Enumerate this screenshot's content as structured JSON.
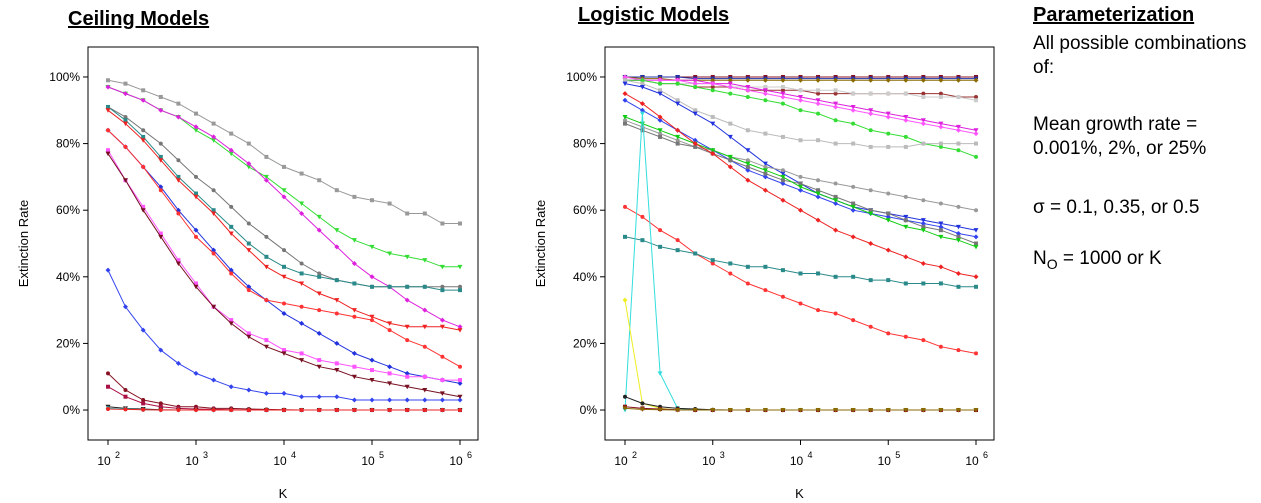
{
  "param": {
    "title": "Parameterization",
    "intro": "All possible combinations of:",
    "growth": "Mean growth rate = 0.001%, 2%, or 25%",
    "sigma": "σ = 0.1, 0.35, or 0.5",
    "n0_prefix": "N",
    "n0_sub": "O",
    "n0_suffix": " = 1000 or K"
  },
  "chart_data": [
    {
      "type": "line",
      "title": "Ceiling Models",
      "xlabel": "K",
      "ylabel": "Extinction Rate",
      "xscale": "log",
      "xlim": [
        100,
        1000000
      ],
      "ylim": [
        -9,
        109
      ],
      "xticks": [
        {
          "label": "10",
          "sup": "2"
        },
        {
          "label": "10",
          "sup": "3"
        },
        {
          "label": "10",
          "sup": "4"
        },
        {
          "label": "10",
          "sup": "5"
        },
        {
          "label": "10",
          "sup": "6"
        }
      ],
      "yticks": [
        "0%",
        "20%",
        "40%",
        "60%",
        "80%",
        "100%"
      ],
      "x": [
        100,
        158,
        251,
        398,
        631,
        1000,
        1585,
        2512,
        3981,
        6310,
        10000,
        15849,
        25119,
        39811,
        63096,
        100000,
        158489,
        251189,
        398107,
        630957,
        1000000
      ],
      "series": [
        {
          "color": "#999999",
          "values": [
            99,
            98,
            96,
            94,
            92,
            89,
            86,
            83,
            80,
            76,
            73,
            71,
            69,
            66,
            64,
            63,
            62,
            59,
            59,
            56,
            56
          ]
        },
        {
          "color": "#33dd33",
          "values": [
            97,
            95,
            93,
            90,
            88,
            84,
            81,
            77,
            73,
            70,
            66,
            62,
            58,
            54,
            51,
            49,
            47,
            46,
            45,
            43,
            43
          ]
        },
        {
          "color": "#dd22dd",
          "values": [
            97,
            95,
            93,
            90,
            88,
            85,
            82,
            78,
            74,
            69,
            64,
            59,
            54,
            49,
            44,
            40,
            37,
            33,
            30,
            27,
            25
          ]
        },
        {
          "color": "#777777",
          "values": [
            91,
            88,
            84,
            80,
            75,
            70,
            66,
            61,
            56,
            52,
            48,
            44,
            41,
            39,
            38,
            37,
            37,
            37,
            37,
            37,
            37
          ]
        },
        {
          "color": "#2a8a8a",
          "values": [
            91,
            87,
            82,
            76,
            70,
            65,
            60,
            55,
            50,
            46,
            43,
            41,
            40,
            39,
            38,
            37,
            37,
            37,
            37,
            36,
            36
          ]
        },
        {
          "color": "#ee2222",
          "values": [
            90,
            86,
            81,
            75,
            69,
            64,
            59,
            53,
            48,
            43,
            40,
            38,
            35,
            33,
            30,
            28,
            26,
            25,
            25,
            25,
            24
          ]
        },
        {
          "color": "#2233dd",
          "values": [
            84,
            79,
            73,
            67,
            60,
            54,
            48,
            42,
            37,
            33,
            29,
            26,
            23,
            20,
            17,
            15,
            13,
            11,
            10,
            9,
            8
          ]
        },
        {
          "color": "#ff3333",
          "values": [
            84,
            79,
            73,
            66,
            59,
            52,
            47,
            41,
            36,
            33,
            32,
            31,
            30,
            29,
            28,
            27,
            24,
            21,
            19,
            16,
            13
          ]
        },
        {
          "color": "#ff55ff",
          "values": [
            78,
            69,
            61,
            53,
            45,
            38,
            31,
            27,
            23,
            21,
            18,
            17,
            15,
            14,
            13,
            12,
            11,
            10,
            10,
            9,
            9
          ]
        },
        {
          "color": "#771122",
          "values": [
            77,
            69,
            60,
            52,
            44,
            37,
            31,
            26,
            22,
            19,
            17,
            15,
            13,
            12,
            10,
            9,
            8,
            7,
            6,
            5,
            4
          ]
        },
        {
          "color": "#3344ee",
          "values": [
            42,
            31,
            24,
            18,
            14,
            11,
            9,
            7,
            6,
            5,
            5,
            4,
            4,
            4,
            3,
            3,
            3,
            3,
            3,
            3,
            3
          ]
        },
        {
          "color": "#881122",
          "values": [
            11,
            6,
            3,
            2,
            1,
            1,
            0.5,
            0.5,
            0.3,
            0.2,
            0.1,
            0,
            0,
            0,
            0,
            0,
            0,
            0,
            0,
            0,
            0
          ]
        },
        {
          "color": "#aa1144",
          "values": [
            7,
            4,
            2,
            1,
            0.5,
            0.3,
            0.2,
            0.1,
            0,
            0,
            0,
            0,
            0,
            0,
            0,
            0,
            0,
            0,
            0,
            0,
            0
          ]
        },
        {
          "color": "#222222",
          "values": [
            1,
            0.5,
            0.3,
            0.1,
            0,
            0,
            0,
            0,
            0,
            0,
            0,
            0,
            0,
            0,
            0,
            0,
            0,
            0,
            0,
            0,
            0
          ]
        },
        {
          "color": "#22dddd",
          "values": [
            0.5,
            0.3,
            0.1,
            0,
            0,
            0,
            0,
            0,
            0,
            0,
            0,
            0,
            0,
            0,
            0,
            0,
            0,
            0,
            0,
            0,
            0
          ]
        },
        {
          "color": "#ee2222",
          "values": [
            0.3,
            0.2,
            0.1,
            0,
            0,
            0,
            0,
            0,
            0,
            0,
            0,
            0,
            0,
            0,
            0,
            0,
            0,
            0,
            0,
            0,
            0
          ]
        }
      ]
    },
    {
      "type": "line",
      "title": "Logistic Models",
      "xlabel": "K",
      "ylabel": "Extinction Rate",
      "xscale": "log",
      "xlim": [
        100,
        1000000
      ],
      "ylim": [
        -9,
        109
      ],
      "xticks": [
        {
          "label": "10",
          "sup": "2"
        },
        {
          "label": "10",
          "sup": "3"
        },
        {
          "label": "10",
          "sup": "4"
        },
        {
          "label": "10",
          "sup": "5"
        },
        {
          "label": "10",
          "sup": "6"
        }
      ],
      "yticks": [
        "0%",
        "20%",
        "40%",
        "60%",
        "80%",
        "100%"
      ],
      "x": [
        100,
        158,
        251,
        398,
        631,
        1000,
        1585,
        2512,
        3981,
        6310,
        10000,
        15849,
        25119,
        39811,
        63096,
        100000,
        158489,
        251189,
        398107,
        630957,
        1000000
      ],
      "series": [
        {
          "color": "#881122",
          "values": [
            100,
            100,
            100,
            100,
            100,
            100,
            100,
            100,
            100,
            100,
            100,
            100,
            100,
            100,
            100,
            100,
            100,
            100,
            100,
            100,
            100
          ]
        },
        {
          "color": "#2233aa",
          "values": [
            100,
            100,
            100,
            100,
            99.5,
            99.5,
            99.5,
            99.5,
            99.5,
            99.5,
            99.5,
            99.5,
            99.5,
            99.5,
            99.5,
            99.5,
            99.5,
            99.5,
            99.5,
            99.5,
            99.5
          ]
        },
        {
          "color": "#8a6a00",
          "values": [
            100,
            99.5,
            99.5,
            99,
            99,
            99,
            99,
            99,
            99,
            99,
            99,
            99,
            99,
            99,
            99,
            99,
            99,
            99,
            99,
            99,
            99
          ]
        },
        {
          "color": "#993333",
          "values": [
            99,
            99,
            98,
            98,
            97,
            97,
            97,
            96,
            96,
            96,
            96,
            95,
            95,
            95,
            95,
            95,
            95,
            95,
            95,
            94,
            94
          ]
        },
        {
          "color": "#cccccc",
          "values": [
            99,
            99,
            98,
            98,
            98,
            98,
            97,
            97,
            97,
            97,
            96,
            96,
            96,
            95,
            95,
            95,
            95,
            94,
            94,
            94,
            93
          ]
        },
        {
          "color": "#dd22dd",
          "values": [
            99,
            99,
            99,
            99,
            99,
            98,
            98,
            97,
            96,
            95,
            94,
            93,
            92,
            91,
            90,
            89,
            88,
            87,
            86,
            85,
            84
          ]
        },
        {
          "color": "#ff55ff",
          "values": [
            100,
            99,
            99,
            99,
            98,
            98,
            97,
            96,
            95,
            94,
            93,
            92,
            91,
            90,
            89,
            88,
            87,
            86,
            85,
            84,
            83
          ]
        },
        {
          "color": "#33dd33",
          "values": [
            99,
            99,
            98,
            98,
            97,
            96,
            95,
            94,
            93,
            92,
            90,
            89,
            87,
            86,
            84,
            83,
            82,
            80,
            79,
            78,
            76
          ]
        },
        {
          "color": "#bbbbbb",
          "values": [
            99,
            98,
            96,
            93,
            90,
            88,
            86,
            84,
            83,
            82,
            81,
            81,
            80,
            80,
            79,
            79,
            79,
            80,
            80,
            80,
            80
          ]
        },
        {
          "color": "#2233dd",
          "values": [
            98,
            97,
            95,
            92,
            89,
            86,
            82,
            78,
            74,
            71,
            68,
            65,
            63,
            61,
            60,
            59,
            58,
            57,
            56,
            55,
            54
          ]
        },
        {
          "color": "#3344ee",
          "values": [
            93,
            90,
            87,
            84,
            81,
            78,
            75,
            72,
            70,
            68,
            66,
            64,
            62,
            60,
            59,
            58,
            57,
            56,
            55,
            53,
            52
          ]
        },
        {
          "color": "#999999",
          "values": [
            87,
            85,
            83,
            81,
            79,
            78,
            76,
            75,
            73,
            72,
            70,
            69,
            68,
            67,
            66,
            65,
            64,
            63,
            62,
            61,
            60
          ]
        },
        {
          "color": "#777777",
          "values": [
            86,
            84,
            82,
            80,
            79,
            77,
            75,
            73,
            71,
            69,
            68,
            66,
            64,
            62,
            60,
            59,
            57,
            55,
            54,
            52,
            50
          ]
        },
        {
          "color": "#11cc11",
          "values": [
            88,
            86,
            84,
            82,
            80,
            78,
            76,
            74,
            72,
            70,
            67,
            65,
            63,
            61,
            59,
            57,
            55,
            54,
            52,
            51,
            49
          ]
        },
        {
          "color": "#ee2222",
          "values": [
            95,
            92,
            88,
            84,
            80,
            77,
            73,
            69,
            66,
            63,
            60,
            57,
            54,
            52,
            50,
            48,
            46,
            44,
            43,
            41,
            40
          ]
        },
        {
          "color": "#ff3333",
          "values": [
            61,
            58,
            54,
            51,
            47,
            44,
            41,
            38,
            36,
            34,
            32,
            30,
            29,
            27,
            25,
            23,
            22,
            21,
            19,
            18,
            17
          ]
        },
        {
          "color": "#2a8a8a",
          "values": [
            52,
            51,
            49,
            48,
            47,
            45,
            44,
            43,
            43,
            42,
            41,
            41,
            40,
            40,
            39,
            39,
            38,
            38,
            38,
            37,
            37
          ]
        },
        {
          "color": "#33dddd",
          "values": [
            0,
            89,
            11,
            0.5,
            0,
            0,
            0,
            0,
            0,
            0,
            0,
            0,
            0,
            0,
            0,
            0,
            0,
            0,
            0,
            0,
            0
          ]
        },
        {
          "color": "#eeee22",
          "values": [
            33,
            2,
            0.5,
            0,
            0,
            0,
            0,
            0,
            0,
            0,
            0,
            0,
            0,
            0,
            0,
            0,
            0,
            0,
            0,
            0,
            0
          ]
        },
        {
          "color": "#222222",
          "values": [
            4,
            2,
            1,
            0.5,
            0.3,
            0.1,
            0,
            0,
            0,
            0,
            0,
            0,
            0,
            0,
            0,
            0,
            0,
            0,
            0,
            0,
            0
          ]
        },
        {
          "color": "#881122",
          "values": [
            1,
            0.5,
            0.3,
            0.1,
            0,
            0,
            0,
            0,
            0,
            0,
            0,
            0,
            0,
            0,
            0,
            0,
            0,
            0,
            0,
            0,
            0
          ]
        },
        {
          "color": "#8a6a00",
          "values": [
            0.5,
            0.2,
            0.1,
            0,
            0,
            0,
            0,
            0,
            0,
            0,
            0,
            0,
            0,
            0,
            0,
            0,
            0,
            0,
            0,
            0,
            0
          ]
        }
      ]
    }
  ]
}
